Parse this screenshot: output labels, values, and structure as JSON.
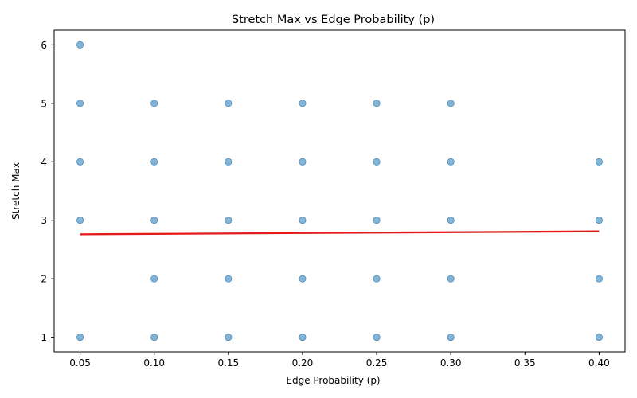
{
  "chart_data": {
    "type": "scatter",
    "title": "Stretch Max vs Edge Probability (p)",
    "xlabel": "Edge Probability (p)",
    "ylabel": "Stretch Max",
    "xlim": [
      0.0325,
      0.4175
    ],
    "ylim": [
      0.75,
      6.25
    ],
    "xticks": [
      "0.05",
      "0.10",
      "0.15",
      "0.20",
      "0.25",
      "0.30",
      "0.35",
      "0.40"
    ],
    "yticks": [
      "1",
      "2",
      "3",
      "4",
      "5",
      "6"
    ],
    "grid": false,
    "legend": "none",
    "series": [
      {
        "color": "#1f77b4",
        "alpha": 0.55,
        "points": [
          [
            0.05,
            1
          ],
          [
            0.05,
            3
          ],
          [
            0.05,
            4
          ],
          [
            0.05,
            5
          ],
          [
            0.05,
            6
          ],
          [
            0.1,
            1
          ],
          [
            0.1,
            2
          ],
          [
            0.1,
            3
          ],
          [
            0.1,
            4
          ],
          [
            0.1,
            5
          ],
          [
            0.15,
            1
          ],
          [
            0.15,
            2
          ],
          [
            0.15,
            3
          ],
          [
            0.15,
            4
          ],
          [
            0.15,
            5
          ],
          [
            0.2,
            1
          ],
          [
            0.2,
            2
          ],
          [
            0.2,
            3
          ],
          [
            0.2,
            4
          ],
          [
            0.2,
            5
          ],
          [
            0.25,
            1
          ],
          [
            0.25,
            2
          ],
          [
            0.25,
            3
          ],
          [
            0.25,
            4
          ],
          [
            0.25,
            5
          ],
          [
            0.3,
            1
          ],
          [
            0.3,
            2
          ],
          [
            0.3,
            3
          ],
          [
            0.3,
            4
          ],
          [
            0.3,
            5
          ],
          [
            0.4,
            1
          ],
          [
            0.4,
            2
          ],
          [
            0.4,
            3
          ],
          [
            0.4,
            4
          ]
        ]
      }
    ],
    "trend_line": {
      "color": "#e41a1c",
      "x": [
        0.05,
        0.4
      ],
      "y": [
        2.76,
        2.81
      ]
    }
  }
}
